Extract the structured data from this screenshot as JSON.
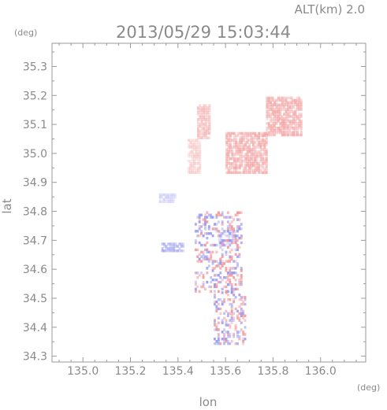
{
  "chart_data": {
    "type": "heatmap",
    "title": "2013/05/29 15:03:44",
    "subtitle": "ALT(km) 2.0",
    "xlabel": "lon",
    "ylabel": "lat",
    "x_unit": "(deg)",
    "y_unit": "(deg)",
    "xlim": [
      134.87,
      136.19
    ],
    "ylim": [
      34.28,
      35.38
    ],
    "x_ticks": [
      135.0,
      135.2,
      135.4,
      135.6,
      135.8,
      136.0
    ],
    "x_tick_labels": [
      "135.0",
      "135.2",
      "135.4",
      "135.6",
      "135.8",
      "136.0"
    ],
    "y_ticks": [
      34.3,
      34.4,
      34.5,
      34.6,
      34.7,
      34.8,
      34.9,
      35.0,
      35.1,
      35.2,
      35.3
    ],
    "y_tick_labels": [
      "34.3",
      "34.4",
      "34.5",
      "34.6",
      "34.7",
      "34.8",
      "34.9",
      "35.0",
      "35.1",
      "35.2",
      "35.3"
    ],
    "grid": false,
    "colors": {
      "positive": "#f08a8a",
      "negative": "#8a8af0",
      "axis": "#9a9a9a"
    },
    "regions": [
      {
        "lon": [
          135.48,
          135.53
        ],
        "lat": [
          35.05,
          35.17
        ],
        "sign": "positive",
        "intensity": 0.35
      },
      {
        "lon": [
          135.44,
          135.49
        ],
        "lat": [
          34.93,
          35.05
        ],
        "sign": "positive",
        "intensity": 0.25
      },
      {
        "lon": [
          135.77,
          135.92
        ],
        "lat": [
          35.06,
          35.19
        ],
        "sign": "positive",
        "intensity": 0.45
      },
      {
        "lon": [
          135.6,
          135.77
        ],
        "lat": [
          34.93,
          35.07
        ],
        "sign": "positive",
        "intensity": 0.45
      },
      {
        "lon": [
          135.32,
          135.39
        ],
        "lat": [
          34.83,
          34.86
        ],
        "sign": "negative",
        "intensity": 0.25
      },
      {
        "lon": [
          135.33,
          135.42
        ],
        "lat": [
          34.66,
          34.69
        ],
        "sign": "negative",
        "intensity": 0.45
      },
      {
        "lon": [
          135.57,
          135.65
        ],
        "lat": [
          34.68,
          34.73
        ],
        "sign": "negative",
        "intensity": 0.25
      },
      {
        "lon": [
          135.47,
          135.67
        ],
        "lat": [
          34.52,
          34.8
        ],
        "sign": "mixed",
        "intensity": 0.6
      },
      {
        "lon": [
          135.55,
          135.68
        ],
        "lat": [
          34.34,
          34.52
        ],
        "sign": "mixed",
        "intensity": 0.6
      }
    ]
  }
}
